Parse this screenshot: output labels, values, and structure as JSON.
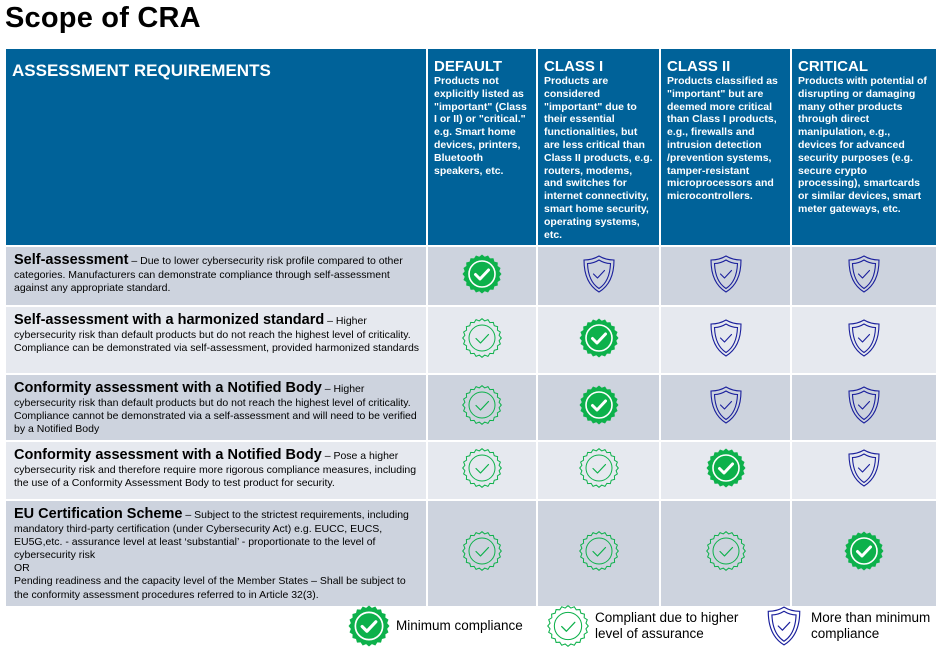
{
  "title": "Scope of CRA",
  "header": {
    "requirements_label": "ASSESSMENT REQUIREMENTS",
    "columns": [
      {
        "name": "DEFAULT",
        "desc": "Products not explicitly listed as \"important\" (Class I or II) or \"critical.\"  e.g. Smart home devices, printers, Bluetooth speakers, etc."
      },
      {
        "name": "CLASS I",
        "desc": "Products are considered \"important\" due to their essential functionalities, but are less critical than Class II products, e.g. routers, modems, and switches for internet connectivity, smart home security, operating systems, etc."
      },
      {
        "name": "CLASS II",
        "desc": "Products classified as \"important\" but are deemed more critical than Class I products, e.g., firewalls and intrusion detection /prevention systems, tamper-resistant microprocessors and microcontrollers."
      },
      {
        "name": "CRITICAL",
        "desc": "Products with potential of disrupting or damaging many other products through direct manipulation, e.g., devices for advanced security purposes (e.g. secure crypto processing), smartcards or similar devices, smart meter gateways, etc."
      }
    ]
  },
  "rows": [
    {
      "title": "Self-assessment",
      "desc": " – Due to lower cybersecurity risk profile compared to other categories. Manufacturers can demonstrate compliance through self-assessment against any appropriate standard.",
      "cells": [
        "minimum",
        "more",
        "more",
        "more"
      ]
    },
    {
      "title": "Self-assessment with a harmonized standard",
      "desc": " – Higher cybersecurity risk than default products but do not reach the highest level of criticality. Compliance can be demonstrated via self-assessment, provided harmonized standards",
      "cells": [
        "higher",
        "minimum",
        "more",
        "more"
      ]
    },
    {
      "title": "Conformity assessment with a Notified Body",
      "desc": " – Higher cybersecurity risk than default products but do not reach the highest level of criticality. Compliance cannot be demonstrated via a self-assessment and will need to be verified by a Notified Body",
      "cells": [
        "higher",
        "minimum",
        "more",
        "more"
      ]
    },
    {
      "title": "Conformity assessment with a Notified Body",
      "desc": " – Pose a higher cybersecurity risk and therefore require more rigorous compliance measures, including the use of a Conformity Assessment Body to test product for security.",
      "cells": [
        "higher",
        "higher",
        "minimum",
        "more"
      ]
    },
    {
      "title": "EU Certification Scheme",
      "desc": " – Subject to the strictest requirements, including mandatory third-party certification (under Cybersecurity Act) e.g. EUCC, EUCS, EU5G,etc. - assurance level at least ‘substantial’ - proportionate to the level of cybersecurity risk",
      "desc2": "OR",
      "desc3": "Pending readiness and the capacity level of the Member States – Shall be subject to the conformity assessment procedures referred to in Article 32(3).",
      "cells": [
        "higher",
        "higher",
        "higher",
        "minimum"
      ]
    }
  ],
  "legend": [
    {
      "key": "minimum",
      "icon": "filled-badge-check-icon",
      "label": "Minimum compliance"
    },
    {
      "key": "higher",
      "icon": "outline-badge-check-icon",
      "label": "Compliant due to higher level of assurance"
    },
    {
      "key": "more",
      "icon": "shield-check-icon",
      "label": "More than minimum compliance"
    }
  ],
  "colors": {
    "header": "#006299",
    "green": "#0db14b",
    "shield": "#1a1f9c",
    "row_dark": "#cdd3de",
    "row_light": "#e6e9ef"
  }
}
